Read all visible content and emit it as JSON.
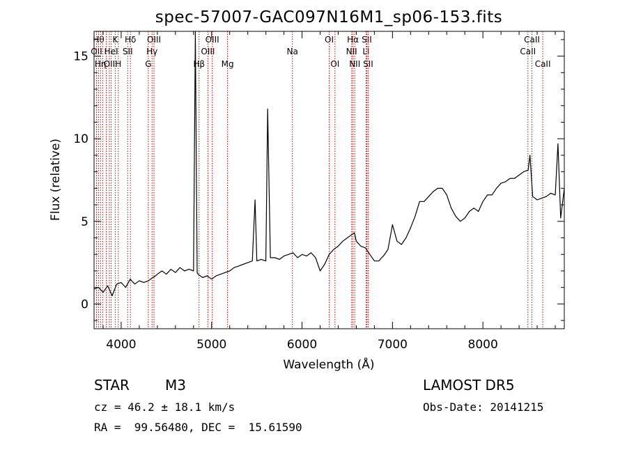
{
  "chart_data": {
    "type": "line",
    "title": "spec-57007-GAC097N16M1_sp06-153.fits",
    "xlabel": "Wavelength (Å)",
    "ylabel": "Flux (relative)",
    "xlim": [
      3700,
      8900
    ],
    "ylim": [
      -1.5,
      16.5
    ],
    "xticks": [
      4000,
      5000,
      6000,
      7000,
      8000
    ],
    "yticks": [
      0,
      5,
      10,
      15
    ],
    "series": [
      {
        "x": [
          3700,
          3750,
          3800,
          3850,
          3900,
          3950,
          4000,
          4050,
          4100,
          4150,
          4200,
          4250,
          4300,
          4350,
          4380,
          4400,
          4450,
          4500,
          4550,
          4600,
          4650,
          4700,
          4750,
          4800,
          4820,
          4840,
          4850,
          4900,
          4950,
          5000,
          5050,
          5100,
          5150,
          5200,
          5250,
          5300,
          5350,
          5400,
          5450,
          5480,
          5500,
          5550,
          5600,
          5620,
          5650,
          5700,
          5750,
          5800,
          5850,
          5900,
          5950,
          6000,
          6050,
          6100,
          6150,
          6200,
          6250,
          6300,
          6350,
          6400,
          6450,
          6500,
          6550,
          6580,
          6600,
          6650,
          6700,
          6750,
          6800,
          6850,
          6880,
          6900,
          6950,
          6990,
          7000,
          7050,
          7100,
          7150,
          7200,
          7250,
          7300,
          7350,
          7400,
          7450,
          7500,
          7550,
          7600,
          7650,
          7700,
          7750,
          7800,
          7850,
          7900,
          7950,
          8000,
          8050,
          8100,
          8150,
          8200,
          8250,
          8300,
          8350,
          8400,
          8450,
          8500,
          8520,
          8550,
          8600,
          8650,
          8700,
          8750,
          8800,
          8830,
          8860,
          8900
        ],
        "y": [
          0.9,
          1.0,
          0.7,
          1.1,
          0.5,
          1.2,
          1.3,
          1.0,
          1.5,
          1.2,
          1.4,
          1.3,
          1.4,
          1.6,
          1.7,
          1.8,
          2.0,
          1.8,
          2.1,
          1.9,
          2.2,
          2.0,
          2.1,
          2.0,
          16.5,
          1.9,
          1.8,
          1.6,
          1.7,
          1.5,
          1.7,
          1.8,
          1.9,
          2.0,
          2.2,
          2.3,
          2.4,
          2.5,
          2.6,
          6.3,
          2.6,
          2.7,
          2.6,
          11.8,
          2.8,
          2.8,
          2.7,
          2.9,
          3.0,
          3.1,
          2.8,
          3.0,
          2.9,
          3.1,
          2.8,
          2.0,
          2.4,
          3.0,
          3.3,
          3.5,
          3.8,
          4.0,
          4.2,
          4.3,
          3.8,
          3.5,
          3.4,
          3.0,
          2.6,
          2.6,
          2.8,
          2.9,
          3.3,
          4.5,
          4.8,
          3.8,
          3.6,
          4.0,
          4.6,
          5.3,
          6.2,
          6.2,
          6.5,
          6.8,
          7.0,
          7.0,
          6.6,
          5.8,
          5.3,
          5.0,
          5.2,
          5.6,
          5.8,
          5.6,
          6.2,
          6.6,
          6.6,
          7.0,
          7.3,
          7.4,
          7.6,
          7.6,
          7.8,
          8.0,
          8.1,
          9.0,
          6.5,
          6.3,
          6.4,
          6.5,
          6.7,
          6.6,
          9.7,
          5.2,
          7.0
        ]
      }
    ],
    "line_markers": [
      {
        "w": 3727,
        "row": 1,
        "label": "OII"
      },
      {
        "w": 3750,
        "row": 0,
        "label": "Hθ"
      },
      {
        "w": 3771,
        "row": 2,
        "label": "Hη"
      },
      {
        "w": 3797,
        "row": 0,
        "label": ""
      },
      {
        "w": 3835,
        "row": 2,
        "label": ""
      },
      {
        "w": 3869,
        "row": 2,
        "label": "OII"
      },
      {
        "w": 3889,
        "row": 1,
        "label": "HeI"
      },
      {
        "w": 3934,
        "row": 0,
        "label": "K"
      },
      {
        "w": 3968,
        "row": 2,
        "label": "H"
      },
      {
        "w": 4072,
        "row": 1,
        "label": "SII"
      },
      {
        "w": 4102,
        "row": 0,
        "label": "Hδ"
      },
      {
        "w": 4300,
        "row": 2,
        "label": "G"
      },
      {
        "w": 4341,
        "row": 1,
        "label": "Hγ"
      },
      {
        "w": 4363,
        "row": 0,
        "label": "OIII"
      },
      {
        "w": 4861,
        "row": 2,
        "label": "Hβ"
      },
      {
        "w": 4959,
        "row": 1,
        "label": "OIII"
      },
      {
        "w": 5007,
        "row": 0,
        "label": "OIII"
      },
      {
        "w": 5176,
        "row": 2,
        "label": "Mg"
      },
      {
        "w": 5893,
        "row": 1,
        "label": "Na"
      },
      {
        "w": 6300,
        "row": 0,
        "label": "OI"
      },
      {
        "w": 6364,
        "row": 2,
        "label": "OI"
      },
      {
        "w": 6548,
        "row": 1,
        "label": "NII"
      },
      {
        "w": 6563,
        "row": 0,
        "label": "Hα"
      },
      {
        "w": 6583,
        "row": 2,
        "label": "NII"
      },
      {
        "w": 6707,
        "row": 1,
        "label": "Li"
      },
      {
        "w": 6716,
        "row": 0,
        "label": "SII"
      },
      {
        "w": 6731,
        "row": 2,
        "label": "SII"
      },
      {
        "w": 8498,
        "row": 1,
        "label": "CaII"
      },
      {
        "w": 8542,
        "row": 0,
        "label": "CaII"
      },
      {
        "w": 8662,
        "row": 2,
        "label": "CaII"
      }
    ]
  },
  "info": {
    "object_class": "STAR",
    "subclass": "M3",
    "survey": "LAMOST DR5",
    "cz": "cz = 46.2 ± 18.1 km/s",
    "obs_date": "Obs-Date: 20141215",
    "coords": "RA =  99.56480, DEC =  15.61590"
  },
  "colors": {
    "spectrum": "#000000",
    "marker": "#cc0000"
  }
}
